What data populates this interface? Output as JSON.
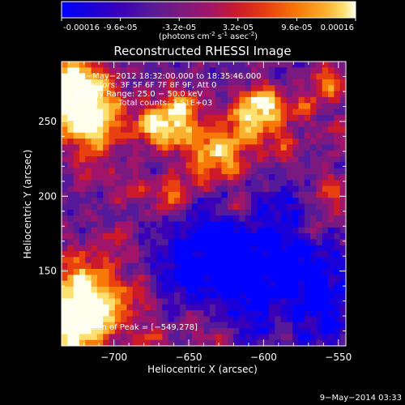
{
  "colorbar": {
    "ticks": [
      "-0.00016",
      "-9.6e-05",
      "-3.2e-05",
      "3.2e-05",
      "9.6e-05",
      "0.00016"
    ],
    "tick_values": [
      -0.00016,
      -9.6e-05,
      -3.2e-05,
      3.2e-05,
      9.6e-05,
      0.00016
    ],
    "unit_main": "(photons cm",
    "unit_exp1": "-2",
    "unit_mid": " s",
    "unit_exp2": "-1",
    "unit_post": " asec",
    "unit_exp3": "-2",
    "unit_close": ")",
    "colors": [
      "#0000ff",
      "#1a00d8",
      "#3a00b8",
      "#551a99",
      "#7a1a80",
      "#a0156a",
      "#cc1a2a",
      "#e84010",
      "#f87808",
      "#fcb030",
      "#fde070",
      "#ffffee"
    ]
  },
  "plot": {
    "title": "Reconstructed RHESSI Image",
    "xlabel": "Heliocentric X (arcsec)",
    "ylabel": "Heliocentric Y (arcsec)",
    "x_ticks": [
      "−700",
      "−650",
      "−600",
      "−550"
    ],
    "x_tick_values": [
      -700,
      -650,
      -600,
      -550
    ],
    "y_ticks": [
      "150",
      "200",
      "250"
    ],
    "y_tick_values": [
      150,
      200,
      250
    ],
    "xlim": [
      -735,
      -545
    ],
    "ylim": [
      100,
      290
    ]
  },
  "annotations": {
    "line1": "23−May−2012 18:32:00.000 to 18:35:46.000",
    "line2": "Detectors: 3F 5F 6F 7F 8F 9F, Att 0",
    "line3": "Energy Range: 25.0 − 50.0 keV",
    "line4_a": "Clean",
    "line4_b": "Total counts: 3.51E+03",
    "peak": "Position of Peak = [−549,278]"
  },
  "footer": {
    "date": "9−May−2014 03:33"
  }
}
